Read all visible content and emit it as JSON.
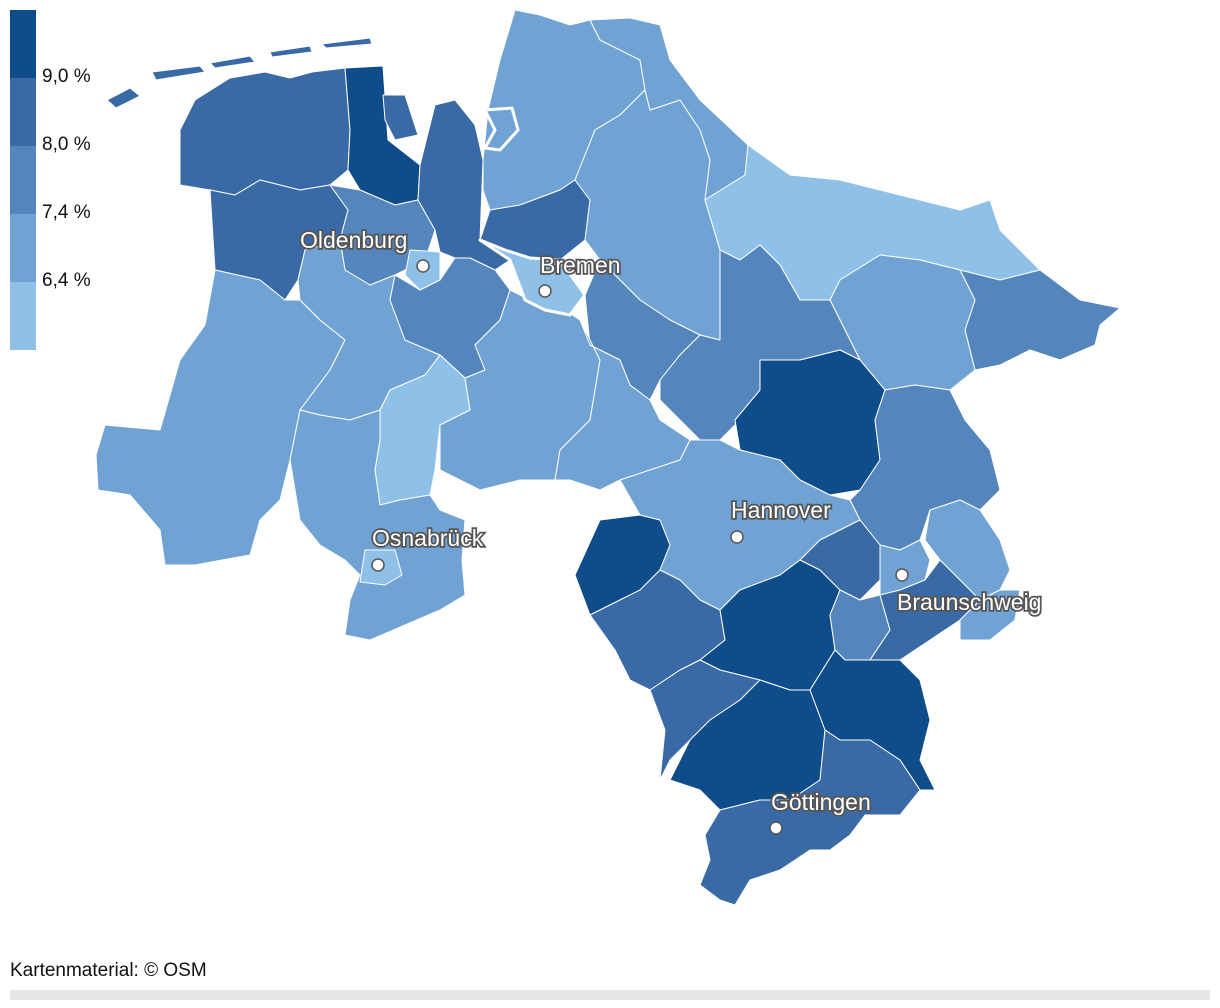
{
  "legend": {
    "labels": [
      "9,0 %",
      "8,0 %",
      "7,4 %",
      "6,4 %"
    ],
    "colors": [
      "#0f4c8a",
      "#3a6aa5",
      "#5585bd",
      "#70a3d3",
      "#8fc1e8"
    ]
  },
  "cities": [
    {
      "name": "Oldenburg"
    },
    {
      "name": "Bremen"
    },
    {
      "name": "Osnabrück"
    },
    {
      "name": "Hannover"
    },
    {
      "name": "Braunschweig"
    },
    {
      "name": "Göttingen"
    }
  ],
  "credit": "Kartenmaterial: © OSM",
  "colors": {
    "class1": "#8fc1e8",
    "class2": "#70a3d3",
    "class3": "#5585bd",
    "class4": "#3a6aa5",
    "class5": "#0f4c8a",
    "border": "#ffffff"
  }
}
